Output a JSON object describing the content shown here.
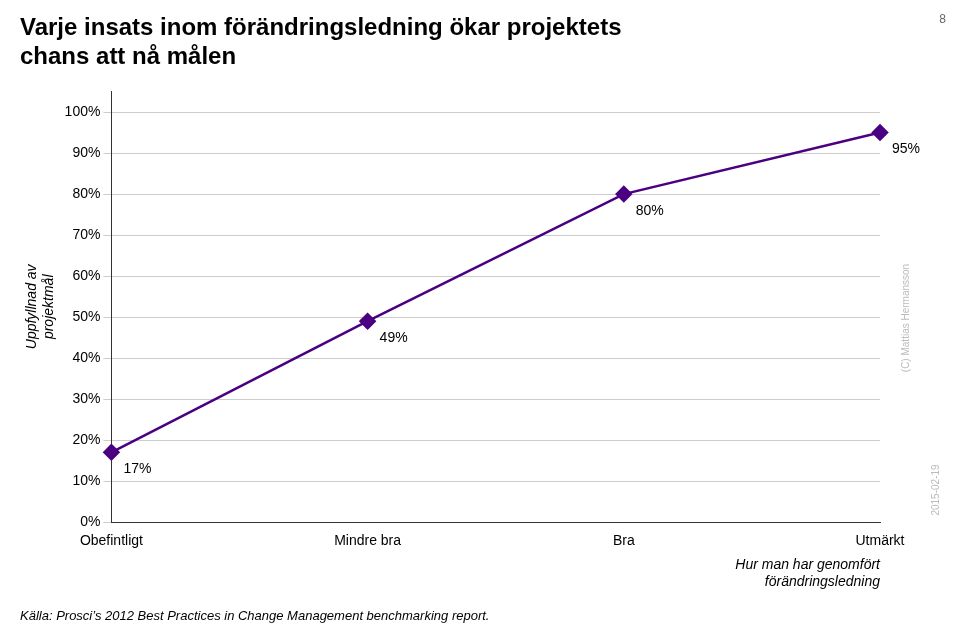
{
  "chart_data": {
    "type": "line",
    "title": "Varje insats inom förändringsledning ökar projektets\nchans att nå målen",
    "categories": [
      "Obefintligt",
      "Mindre bra",
      "Bra",
      "Utmärkt"
    ],
    "values": [
      0.17,
      0.49,
      0.8,
      0.95
    ],
    "value_labels": [
      "17%",
      "49%",
      "80%",
      "95%"
    ],
    "data_labels": true,
    "color": "#4B0082",
    "marker": "diamond",
    "xlabel": "Hur man har genomfört\nförändringsledning",
    "ylabel": "Uppfyllnad av\nprojektmål",
    "ylim": [
      0,
      1.05
    ],
    "yticks": [
      {
        "value": 0.0,
        "label": "0%"
      },
      {
        "value": 0.1,
        "label": "10%"
      },
      {
        "value": 0.2,
        "label": "20%"
      },
      {
        "value": 0.3,
        "label": "30%"
      },
      {
        "value": 0.4,
        "label": "40%"
      },
      {
        "value": 0.5,
        "label": "50%"
      },
      {
        "value": 0.6,
        "label": "60%"
      },
      {
        "value": 0.7,
        "label": "70%"
      },
      {
        "value": 0.8,
        "label": "80%"
      },
      {
        "value": 0.9,
        "label": "90%"
      },
      {
        "value": 1.0,
        "label": "100%"
      }
    ],
    "grid": "y",
    "annotations": [
      "Källa: Prosci’s 2012 Best Practices in Change Management benchmarking report.",
      "(C) Mattias Hermansson",
      "8",
      "2015-02-19"
    ]
  }
}
